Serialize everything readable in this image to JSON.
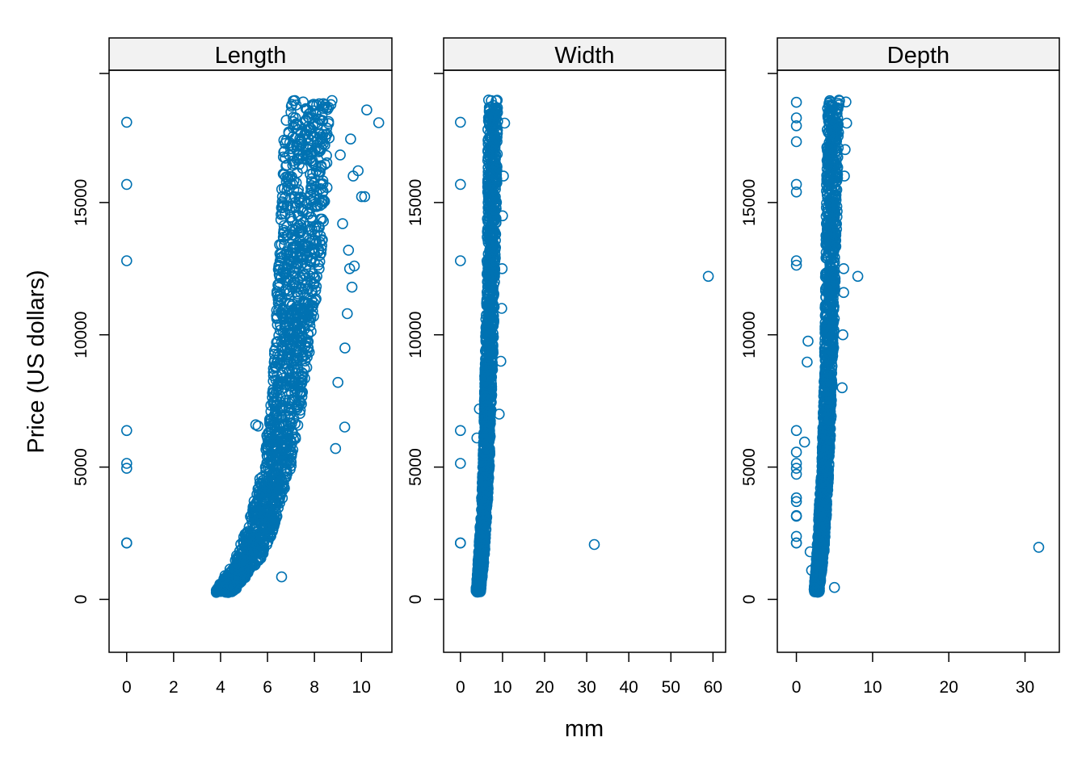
{
  "chart_data": {
    "type": "scatter",
    "xlabel": "mm",
    "ylabel": "Price (US dollars)",
    "marker_color": "#0072B2",
    "strip_fill": "#F2F2F2",
    "ylim": [
      -2000,
      20000
    ],
    "yticks": [
      0,
      5000,
      10000,
      15000
    ],
    "yticklabels": [
      "0",
      "5000",
      "10000",
      "15000"
    ],
    "panels": [
      {
        "name": "Length",
        "xlim": [
          -0.75,
          11.3
        ],
        "xticks": [
          0,
          2,
          4,
          6,
          8,
          10
        ],
        "xticklabels": [
          "0",
          "2",
          "4",
          "6",
          "8",
          "10"
        ],
        "band": [
          [
            3.8,
            4.6,
            330
          ],
          [
            4.0,
            4.8,
            600
          ],
          [
            4.3,
            5.2,
            1000
          ],
          [
            4.6,
            5.7,
            1500
          ],
          [
            4.9,
            6.1,
            2200
          ],
          [
            5.2,
            6.4,
            3000
          ],
          [
            5.5,
            6.7,
            4000
          ],
          [
            5.8,
            7.0,
            5000
          ],
          [
            6.0,
            7.3,
            6500
          ],
          [
            6.2,
            7.6,
            8000
          ],
          [
            6.3,
            7.9,
            10000
          ],
          [
            6.4,
            8.2,
            12000
          ],
          [
            6.5,
            8.4,
            14000
          ],
          [
            6.6,
            8.6,
            16000
          ],
          [
            6.7,
            8.7,
            18000
          ],
          [
            6.8,
            8.9,
            18800
          ]
        ],
        "outliers": [
          [
            0,
            18034
          ],
          [
            0,
            15686
          ],
          [
            0,
            12800
          ],
          [
            0,
            6381
          ],
          [
            0,
            5139
          ],
          [
            0,
            4954
          ],
          [
            0,
            2130
          ],
          [
            0,
            2130
          ],
          [
            10.74,
            18018
          ],
          [
            10.23,
            18500
          ],
          [
            10.01,
            15223
          ],
          [
            10.14,
            15223
          ],
          [
            9.54,
            17400
          ],
          [
            9.86,
            16200
          ],
          [
            9.65,
            16000
          ],
          [
            9.7,
            12600
          ],
          [
            9.5,
            12500
          ],
          [
            9.4,
            10800
          ],
          [
            9.29,
            6512
          ],
          [
            8.9,
            5700
          ],
          [
            6.6,
            850
          ],
          [
            5.5,
            6600
          ],
          [
            5.6,
            6550
          ],
          [
            9.2,
            14200
          ],
          [
            9.6,
            11800
          ],
          [
            9.3,
            9500
          ],
          [
            9.0,
            8200
          ],
          [
            9.45,
            13200
          ],
          [
            8.7,
            18700
          ],
          [
            9.1,
            16800
          ]
        ]
      },
      {
        "name": "Width",
        "xlim": [
          -4.0,
          63.0
        ],
        "xticks": [
          0,
          10,
          20,
          30,
          40,
          50,
          60
        ],
        "xticklabels": [
          "0",
          "10",
          "20",
          "30",
          "40",
          "50",
          "60"
        ],
        "band": [
          [
            3.7,
            4.8,
            330
          ],
          [
            4.0,
            5.3,
            1000
          ],
          [
            4.4,
            5.9,
            2000
          ],
          [
            4.9,
            6.4,
            3500
          ],
          [
            5.3,
            6.9,
            5000
          ],
          [
            5.6,
            7.3,
            7000
          ],
          [
            5.9,
            7.8,
            9500
          ],
          [
            6.2,
            8.2,
            12000
          ],
          [
            6.4,
            8.6,
            15000
          ],
          [
            6.5,
            8.9,
            18000
          ],
          [
            6.6,
            9.1,
            18800
          ]
        ],
        "outliers": [
          [
            0,
            18034
          ],
          [
            0,
            15686
          ],
          [
            0,
            12800
          ],
          [
            0,
            6381
          ],
          [
            0,
            5139
          ],
          [
            0,
            2130
          ],
          [
            0,
            2130
          ],
          [
            58.9,
            12210
          ],
          [
            31.8,
            2075
          ],
          [
            4.5,
            7200
          ],
          [
            3.9,
            6100
          ],
          [
            10.5,
            18000
          ],
          [
            10.2,
            16000
          ],
          [
            10.0,
            14500
          ],
          [
            9.9,
            12500
          ],
          [
            9.8,
            11000
          ],
          [
            9.6,
            9000
          ],
          [
            9.2,
            7000
          ],
          [
            4.8,
            450
          ]
        ]
      },
      {
        "name": "Depth",
        "xlim": [
          -2.5,
          34.5
        ],
        "xticks": [
          0,
          10,
          20,
          30
        ],
        "xticklabels": [
          "0",
          "10",
          "20",
          "30"
        ],
        "band": [
          [
            2.3,
            3.0,
            330
          ],
          [
            2.5,
            3.3,
            1000
          ],
          [
            2.7,
            3.7,
            2000
          ],
          [
            3.0,
            4.0,
            3500
          ],
          [
            3.3,
            4.3,
            5000
          ],
          [
            3.5,
            4.6,
            7000
          ],
          [
            3.7,
            4.9,
            9500
          ],
          [
            3.8,
            5.1,
            12000
          ],
          [
            3.9,
            5.4,
            15000
          ],
          [
            4.0,
            5.6,
            18000
          ],
          [
            4.1,
            5.7,
            18800
          ]
        ],
        "outliers": [
          [
            0,
            18788
          ],
          [
            0,
            18200
          ],
          [
            0,
            17900
          ],
          [
            0,
            17300
          ],
          [
            0,
            15686
          ],
          [
            0,
            15400
          ],
          [
            0,
            12800
          ],
          [
            0,
            12631
          ],
          [
            0,
            6381
          ],
          [
            0,
            5564
          ],
          [
            0,
            5139
          ],
          [
            0,
            4954
          ],
          [
            0,
            4731
          ],
          [
            0,
            3837
          ],
          [
            0,
            3696
          ],
          [
            0,
            3167
          ],
          [
            0,
            3142
          ],
          [
            0,
            2383
          ],
          [
            0,
            2130
          ],
          [
            0,
            2130
          ],
          [
            1.53,
            9760
          ],
          [
            1.41,
            8970
          ],
          [
            1.07,
            5946
          ],
          [
            31.8,
            1970
          ],
          [
            8.06,
            12210
          ],
          [
            6.5,
            18800
          ],
          [
            6.6,
            18000
          ],
          [
            6.4,
            17000
          ],
          [
            6.3,
            16000
          ],
          [
            6.2,
            12500
          ],
          [
            6.1,
            10000
          ],
          [
            6.0,
            8000
          ],
          [
            6.2,
            11600
          ],
          [
            5.0,
            450
          ],
          [
            1.8,
            1800
          ],
          [
            2.0,
            1100
          ]
        ]
      }
    ]
  }
}
